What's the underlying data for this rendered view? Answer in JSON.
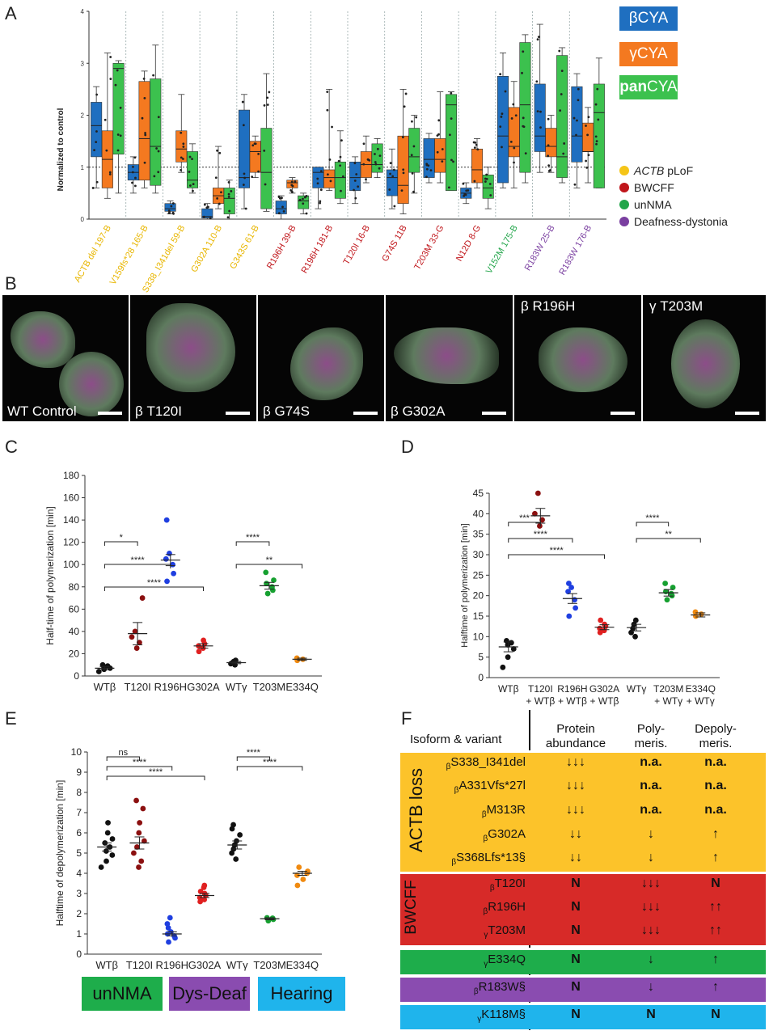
{
  "panels": {
    "a": "A",
    "b": "B",
    "c": "C",
    "d": "D",
    "e": "E",
    "f": "F"
  },
  "panel_a": {
    "legend": {
      "beta": "βCYA",
      "gamma": "γCYA",
      "pan_bold": "pan",
      "pan_rest": "CYA"
    },
    "legend_colors": {
      "beta": "#1f6fc0",
      "gamma": "#f47920",
      "pan": "#3cc14e"
    },
    "legend2": [
      {
        "label_italic": "ACTB",
        "label": " pLoF",
        "color": "#f5c518"
      },
      {
        "label_italic": "",
        "label": "BWCFF",
        "color": "#c0161b"
      },
      {
        "label_italic": "",
        "label": "unNMA",
        "color": "#22a54a"
      },
      {
        "label_italic": "",
        "label": "Deafness-dystonia",
        "color": "#7a3fa0"
      }
    ],
    "ylabel": "Normalized to control",
    "yticks": [
      "0",
      "1",
      "2",
      "3",
      "4"
    ],
    "groups": [
      {
        "name": "ACTB del 197-B",
        "color": "#e8b600"
      },
      {
        "name": "V159fs*28 165-B",
        "color": "#e8b600"
      },
      {
        "name": "S338_I341del 59-B",
        "color": "#e8b600"
      },
      {
        "name": "G302A 110-B",
        "color": "#e8b600"
      },
      {
        "name": "G343S 61-B",
        "color": "#e8b600"
      },
      {
        "name": "R196H 39-B",
        "color": "#c0161b"
      },
      {
        "name": "R196H 181-B",
        "color": "#c0161b"
      },
      {
        "name": "T120I 16-B",
        "color": "#c0161b"
      },
      {
        "name": "G74S 11B",
        "color": "#c0161b"
      },
      {
        "name": "T203M 33-G",
        "color": "#c0161b"
      },
      {
        "name": "N12D 8-G",
        "color": "#c0161b"
      },
      {
        "name": "V152M 175-B",
        "color": "#22a54a"
      },
      {
        "name": "R183W 25-B",
        "color": "#7a3fa0"
      },
      {
        "name": "R183W 176-B",
        "color": "#7a3fa0"
      }
    ]
  },
  "chart_data": [
    {
      "type": "box",
      "panel": "A",
      "ylabel": "Normalized to control",
      "ylim": [
        0,
        4
      ],
      "reference_line": 1,
      "categories": [
        "ACTB del 197-B",
        "V159fs*28 165-B",
        "S338_I341del 59-B",
        "G302A 110-B",
        "G343S 61-B",
        "R196H 39-B",
        "R196H 181-B",
        "T120I 16-B",
        "G74S 11B",
        "T203M 33-G",
        "N12D 8-G",
        "V152M 175-B",
        "R183W 25-B",
        "R183W 176-B"
      ],
      "series": [
        {
          "name": "βCYA",
          "boxes": [
            [
              0.6,
              1.2,
              1.8,
              2.25,
              2.55
            ],
            [
              0.5,
              0.75,
              0.9,
              1.05,
              1.2
            ],
            [
              0.1,
              0.15,
              0.2,
              0.3,
              0.35
            ],
            [
              0.0,
              0.02,
              0.05,
              0.2,
              0.3
            ],
            [
              0.2,
              0.6,
              0.8,
              2.1,
              2.4
            ],
            [
              0.0,
              0.1,
              0.2,
              0.35,
              0.45
            ],
            [
              0.2,
              0.6,
              0.9,
              1.0,
              1.0
            ],
            [
              0.3,
              0.55,
              0.8,
              1.1,
              1.2
            ],
            [
              0.2,
              0.45,
              0.8,
              0.95,
              1.35
            ],
            [
              0.7,
              0.8,
              1.15,
              1.55,
              1.65
            ],
            [
              0.3,
              0.4,
              0.5,
              0.6,
              0.7
            ],
            [
              0.6,
              0.7,
              1.6,
              2.75,
              3.2
            ],
            [
              0.9,
              1.3,
              1.6,
              2.6,
              3.75
            ],
            [
              0.6,
              1.1,
              1.6,
              2.55,
              2.8
            ]
          ]
        },
        {
          "name": "γCYA",
          "boxes": [
            [
              0.4,
              0.6,
              1.15,
              1.7,
              3.2
            ],
            [
              0.6,
              0.75,
              1.55,
              2.65,
              2.85
            ],
            [
              0.9,
              1.1,
              1.35,
              1.7,
              2.4
            ],
            [
              0.2,
              0.3,
              0.45,
              0.6,
              1.4
            ],
            [
              0.8,
              0.9,
              1.3,
              1.5,
              1.6
            ],
            [
              0.5,
              0.6,
              0.7,
              0.75,
              0.8
            ],
            [
              0.55,
              0.6,
              0.8,
              0.95,
              2.5
            ],
            [
              0.7,
              0.8,
              1.05,
              1.3,
              1.6
            ],
            [
              0.1,
              0.3,
              0.65,
              1.6,
              2.5
            ],
            [
              0.7,
              0.9,
              1.15,
              1.55,
              2.45
            ],
            [
              0.6,
              0.7,
              0.95,
              1.35,
              1.55
            ],
            [
              0.6,
              1.2,
              1.4,
              2.15,
              2.65
            ],
            [
              0.9,
              1.2,
              1.4,
              1.75,
              2.0
            ],
            [
              0.7,
              1.3,
              1.3,
              1.85,
              2.15
            ]
          ]
        },
        {
          "name": "panCYA",
          "boxes": [
            [
              0.5,
              1.25,
              2.9,
              3.0,
              3.05
            ],
            [
              0.5,
              0.65,
              1.4,
              2.7,
              3.35
            ],
            [
              0.5,
              0.6,
              0.75,
              1.3,
              1.45
            ],
            [
              0.0,
              0.1,
              0.4,
              0.6,
              0.75
            ],
            [
              0.15,
              0.2,
              0.9,
              1.75,
              2.8
            ],
            [
              0.1,
              0.2,
              0.35,
              0.45,
              0.5
            ],
            [
              0.3,
              0.4,
              0.8,
              1.1,
              1.7
            ],
            [
              0.8,
              0.9,
              1.05,
              1.45,
              1.55
            ],
            [
              0.5,
              0.9,
              1.2,
              1.75,
              2.0
            ],
            [
              0.55,
              0.55,
              2.2,
              2.4,
              2.45
            ],
            [
              0.2,
              0.4,
              0.6,
              0.85,
              1.0
            ],
            [
              0.7,
              0.9,
              2.2,
              3.4,
              3.55
            ],
            [
              0.7,
              0.8,
              1.2,
              3.15,
              3.3
            ],
            [
              0.6,
              0.6,
              2.05,
              2.6,
              3.1
            ]
          ]
        }
      ]
    },
    {
      "type": "scatter",
      "panel": "C",
      "ylabel": "Half-time of polymerization [min]",
      "ylim": [
        0,
        180
      ],
      "yticks": [
        0,
        20,
        40,
        60,
        80,
        100,
        120,
        140,
        160,
        180
      ],
      "categories": [
        "WTβ",
        "T120I",
        "R196H",
        "G302A",
        "WTγ",
        "T203M",
        "E334Q"
      ],
      "colors": [
        "#111111",
        "#8b1010",
        "#1f3fe0",
        "#e02020",
        "#111111",
        "#16a030",
        "#f08a10"
      ],
      "means": [
        7,
        38,
        104,
        27,
        12,
        81,
        15
      ],
      "sems": [
        1.5,
        10,
        5,
        2,
        1,
        3,
        1
      ],
      "points": [
        [
          4,
          6,
          7,
          8,
          9,
          10
        ],
        [
          25,
          30,
          35,
          40,
          70
        ],
        [
          85,
          92,
          100,
          105,
          110,
          140
        ],
        [
          22,
          25,
          27,
          29,
          32
        ],
        [
          10,
          11,
          12,
          13,
          14
        ],
        [
          74,
          77,
          80,
          83,
          86,
          93
        ],
        [
          14,
          15,
          16
        ]
      ],
      "significance": [
        {
          "from": 0,
          "to": 1,
          "label": "*"
        },
        {
          "from": 0,
          "to": 2,
          "label": "****"
        },
        {
          "from": 0,
          "to": 3,
          "label": "****"
        },
        {
          "from": 4,
          "to": 5,
          "label": "****"
        },
        {
          "from": 4,
          "to": 6,
          "label": "**"
        }
      ]
    },
    {
      "type": "scatter",
      "panel": "D",
      "ylabel": "Halftime of polymerization [min]",
      "ylim": [
        0,
        45
      ],
      "yticks": [
        0,
        5,
        10,
        15,
        20,
        25,
        30,
        35,
        40,
        45
      ],
      "categories": [
        "WTβ",
        "T120I + WTβ",
        "R196H + WTβ",
        "G302A + WTβ",
        "WTγ",
        "T203M + WTγ",
        "E334Q + WTγ"
      ],
      "colors": [
        "#111111",
        "#8b1010",
        "#1f3fe0",
        "#e02020",
        "#111111",
        "#16a030",
        "#f08a10"
      ],
      "means": [
        7.5,
        39.5,
        19.3,
        12.3,
        12.2,
        20.7,
        15.3
      ],
      "sems": [
        1.2,
        1.8,
        1.2,
        0.6,
        0.8,
        0.8,
        0.5
      ],
      "points": [
        [
          2.5,
          5,
          7,
          8,
          8.5,
          9
        ],
        [
          37,
          38.5,
          40,
          45
        ],
        [
          15,
          17,
          19,
          21,
          22,
          23
        ],
        [
          11,
          11.5,
          12,
          12.5,
          13,
          14
        ],
        [
          10,
          11,
          12,
          13,
          14
        ],
        [
          19,
          20,
          20.5,
          21,
          22,
          23
        ],
        [
          15,
          15.5,
          16
        ]
      ],
      "significance": [
        {
          "from": 0,
          "to": 1,
          "label": "***"
        },
        {
          "from": 0,
          "to": 2,
          "label": "****"
        },
        {
          "from": 0,
          "to": 3,
          "label": "****"
        },
        {
          "from": 4,
          "to": 5,
          "label": "****"
        },
        {
          "from": 4,
          "to": 6,
          "label": "**"
        }
      ]
    },
    {
      "type": "scatter",
      "panel": "E",
      "ylabel": "Halftime of depolymerization [min]",
      "ylim": [
        0,
        10
      ],
      "yticks": [
        0,
        1,
        2,
        3,
        4,
        5,
        6,
        7,
        8,
        9,
        10
      ],
      "categories": [
        "WTβ",
        "T120I",
        "R196H",
        "G302A",
        "WTγ",
        "T203M",
        "E334Q"
      ],
      "colors": [
        "#111111",
        "#8b1010",
        "#1f3fe0",
        "#e02020",
        "#111111",
        "#16a030",
        "#f08a10"
      ],
      "means": [
        5.3,
        5.5,
        1.0,
        2.9,
        5.4,
        1.75,
        4.0
      ],
      "sems": [
        0.2,
        0.3,
        0.1,
        0.1,
        0.2,
        0.05,
        0.1
      ],
      "points": [
        [
          4.3,
          4.6,
          4.9,
          5.1,
          5.3,
          5.5,
          5.7,
          6.0,
          6.5
        ],
        [
          4.3,
          4.6,
          5.0,
          5.3,
          5.6,
          6.0,
          6.5,
          7.2,
          7.6
        ],
        [
          0.6,
          0.8,
          0.9,
          1.0,
          1.1,
          1.3,
          1.5,
          1.8
        ],
        [
          2.6,
          2.7,
          2.8,
          2.9,
          3.0,
          3.1,
          3.3,
          3.4
        ],
        [
          4.7,
          5.0,
          5.2,
          5.4,
          5.6,
          5.9,
          6.2,
          6.4
        ],
        [
          1.65,
          1.72,
          1.78,
          1.8
        ],
        [
          3.4,
          3.7,
          3.9,
          4.0,
          4.1,
          4.3
        ]
      ],
      "significance": [
        {
          "from": 0,
          "to": 1,
          "label": "ns"
        },
        {
          "from": 0,
          "to": 2,
          "label": "****"
        },
        {
          "from": 0,
          "to": 3,
          "label": "****"
        },
        {
          "from": 4,
          "to": 5,
          "label": "****"
        },
        {
          "from": 4,
          "to": 6,
          "label": "****"
        }
      ]
    }
  ],
  "panel_b": {
    "images": [
      {
        "caption": "WT Control",
        "caption_pos": "bottom"
      },
      {
        "caption": "β T120I",
        "caption_pos": "bottom"
      },
      {
        "caption": "β G74S",
        "caption_pos": "bottom"
      },
      {
        "caption": "β G302A",
        "caption_pos": "bottom"
      },
      {
        "caption": "β R196H",
        "caption_pos": "top"
      },
      {
        "caption": "γ T203M",
        "caption_pos": "top"
      }
    ]
  },
  "panel_f": {
    "headers": {
      "isoform": "Isoform & variant",
      "protein": "Protein\nabundance",
      "poly": "Poly-\nmeris.",
      "depoly": "Depoly-\nmeris."
    },
    "groups": [
      {
        "label": "ACTB loss",
        "color": "#fcc32a",
        "rows": [
          {
            "pre": "β",
            "variant": "S338_I341del",
            "protein": "↓↓↓",
            "poly": "n.a.",
            "depoly": "n.a."
          },
          {
            "pre": "β",
            "variant": "A331Vfs*27l",
            "protein": "↓↓↓",
            "poly": "n.a.",
            "depoly": "n.a."
          },
          {
            "pre": "β",
            "variant": "M313R",
            "protein": "↓↓↓",
            "poly": "n.a.",
            "depoly": "n.a."
          },
          {
            "pre": "β",
            "variant": "G302A",
            "protein": "↓↓",
            "poly": "↓",
            "depoly": "↑"
          },
          {
            "pre": "β",
            "variant": "S368Lfs*13§",
            "protein": "↓↓",
            "poly": "↓",
            "depoly": "↑"
          }
        ]
      },
      {
        "label": "BWCFF",
        "color": "#d72a28",
        "rows": [
          {
            "pre": "β",
            "variant": "T120I",
            "protein": "N",
            "poly": "↓↓↓",
            "depoly": "N"
          },
          {
            "pre": "β",
            "variant": "R196H",
            "protein": "N",
            "poly": "↓↓↓",
            "depoly": "↑↑"
          },
          {
            "pre": "γ",
            "variant": "T203M",
            "protein": "N",
            "poly": "↓↓↓",
            "depoly": "↑↑"
          }
        ]
      },
      {
        "label": "",
        "color": "#1ead4b",
        "rows": [
          {
            "pre": "γ",
            "variant": "E334Q",
            "protein": "N",
            "poly": "↓",
            "depoly": "↑"
          }
        ]
      },
      {
        "label": "",
        "color": "#8a4cb0",
        "rows": [
          {
            "pre": "β",
            "variant": "R183W§",
            "protein": "N",
            "poly": "↓",
            "depoly": "↑"
          }
        ]
      },
      {
        "label": "",
        "color": "#1fb4ec",
        "rows": [
          {
            "pre": "γ",
            "variant": "K118M§",
            "protein": "N",
            "poly": "N",
            "depoly": "N"
          }
        ]
      }
    ]
  },
  "bottom_legend": [
    {
      "label": "unNMA",
      "color": "#1ead4b"
    },
    {
      "label": "Dys-Deaf",
      "color": "#8a4cb0"
    },
    {
      "label": "Hearing",
      "color": "#1fb4ec"
    }
  ]
}
